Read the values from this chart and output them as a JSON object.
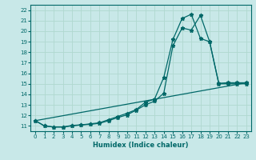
{
  "xlabel": "Humidex (Indice chaleur)",
  "background_color": "#c8e8e8",
  "grid_color": "#b0d8d0",
  "line_color": "#006868",
  "xlim": [
    -0.5,
    23.5
  ],
  "ylim": [
    10.5,
    22.5
  ],
  "xticks": [
    0,
    1,
    2,
    3,
    4,
    5,
    6,
    7,
    8,
    9,
    10,
    11,
    12,
    13,
    14,
    15,
    16,
    17,
    18,
    19,
    20,
    21,
    22,
    23
  ],
  "yticks": [
    11,
    12,
    13,
    14,
    15,
    16,
    17,
    18,
    19,
    20,
    21,
    22
  ],
  "line1_x": [
    0,
    1,
    2,
    3,
    4,
    5,
    6,
    7,
    8,
    9,
    10,
    11,
    12,
    13,
    14,
    15,
    16,
    17,
    18,
    19,
    20,
    21,
    22,
    23
  ],
  "line1_y": [
    11.5,
    11.0,
    10.9,
    10.9,
    11.0,
    11.1,
    11.15,
    11.25,
    11.5,
    11.8,
    12.05,
    12.5,
    13.0,
    13.35,
    14.1,
    18.6,
    20.3,
    20.1,
    21.5,
    19.0,
    15.0,
    15.0,
    15.0,
    15.0
  ],
  "line2_x": [
    0,
    1,
    2,
    3,
    4,
    5,
    6,
    7,
    8,
    9,
    10,
    11,
    12,
    13,
    14,
    15,
    16,
    17,
    18,
    19,
    20,
    21,
    22,
    23
  ],
  "line2_y": [
    11.5,
    11.0,
    10.9,
    10.9,
    11.05,
    11.1,
    11.2,
    11.3,
    11.6,
    11.9,
    12.2,
    12.55,
    13.25,
    13.55,
    15.6,
    19.2,
    21.2,
    21.6,
    19.3,
    19.0,
    15.05,
    15.1,
    15.1,
    15.1
  ],
  "line3_x": [
    0,
    23
  ],
  "line3_y": [
    11.5,
    15.1
  ]
}
